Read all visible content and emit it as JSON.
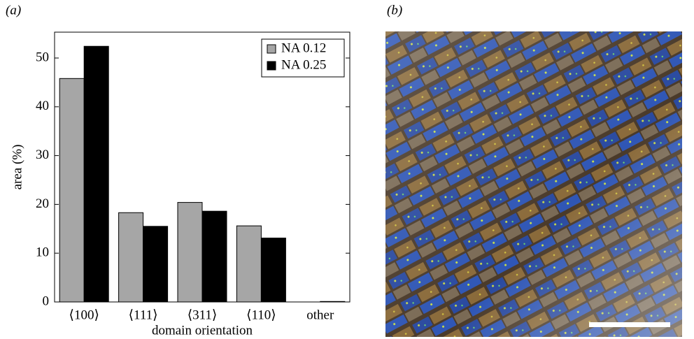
{
  "chart_data": {
    "type": "bar",
    "panel_label": "(a)",
    "x_label": "domain orientation",
    "y_label": "area (%)",
    "categories": [
      "⟨100⟩",
      "⟨111⟩",
      "⟨311⟩",
      "⟨110⟩",
      "other"
    ],
    "series": [
      {
        "name": "NA 0.12",
        "color": "#a6a6a6",
        "values": [
          45.8,
          18.3,
          20.4,
          15.6,
          0
        ]
      },
      {
        "name": "NA 0.25",
        "color": "#000000",
        "values": [
          52.4,
          15.5,
          18.6,
          13.1,
          0.1
        ]
      }
    ],
    "ylim": [
      0,
      55.3
    ],
    "yticks": [
      0,
      10,
      20,
      30,
      40,
      50
    ],
    "legend": "upper right"
  },
  "image": {
    "panel_label": "(b)"
  }
}
